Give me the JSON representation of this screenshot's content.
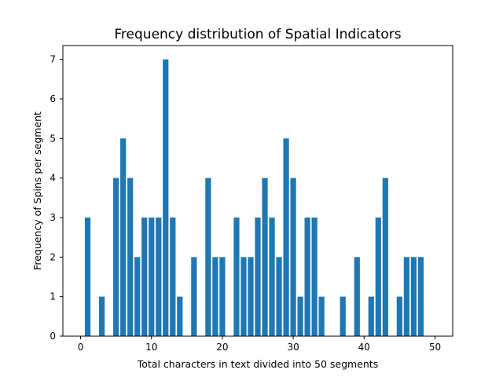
{
  "chart_data": {
    "type": "bar",
    "title": "Frequency distribution of Spatial Indicators",
    "xlabel": "Total characters in text divided into 50 segments",
    "ylabel": "Frequency of Spins per segment",
    "x": [
      0,
      1,
      2,
      3,
      4,
      5,
      6,
      7,
      8,
      9,
      10,
      11,
      12,
      13,
      14,
      15,
      16,
      17,
      18,
      19,
      20,
      21,
      22,
      23,
      24,
      25,
      26,
      27,
      28,
      29,
      30,
      31,
      32,
      33,
      34,
      35,
      36,
      37,
      38,
      39,
      40,
      41,
      42,
      43,
      44,
      45,
      46,
      47,
      48,
      49,
      50
    ],
    "values": [
      0,
      3,
      0,
      1,
      0,
      4,
      5,
      4,
      2,
      3,
      3,
      3,
      7,
      3,
      1,
      0,
      2,
      0,
      4,
      2,
      2,
      0,
      3,
      2,
      2,
      3,
      4,
      3,
      2,
      5,
      4,
      1,
      3,
      3,
      1,
      0,
      0,
      1,
      0,
      2,
      0,
      1,
      3,
      4,
      0,
      1,
      2,
      2,
      2,
      0,
      0
    ],
    "xlim": [
      -2.5,
      52.5
    ],
    "ylim": [
      0,
      7.35
    ],
    "xticks": [
      "0",
      "10",
      "20",
      "30",
      "40",
      "50"
    ],
    "yticks": [
      "0",
      "1",
      "2",
      "3",
      "4",
      "5",
      "6",
      "7"
    ],
    "bar_color": "#1f77b4",
    "grid": false,
    "legend": "none"
  }
}
